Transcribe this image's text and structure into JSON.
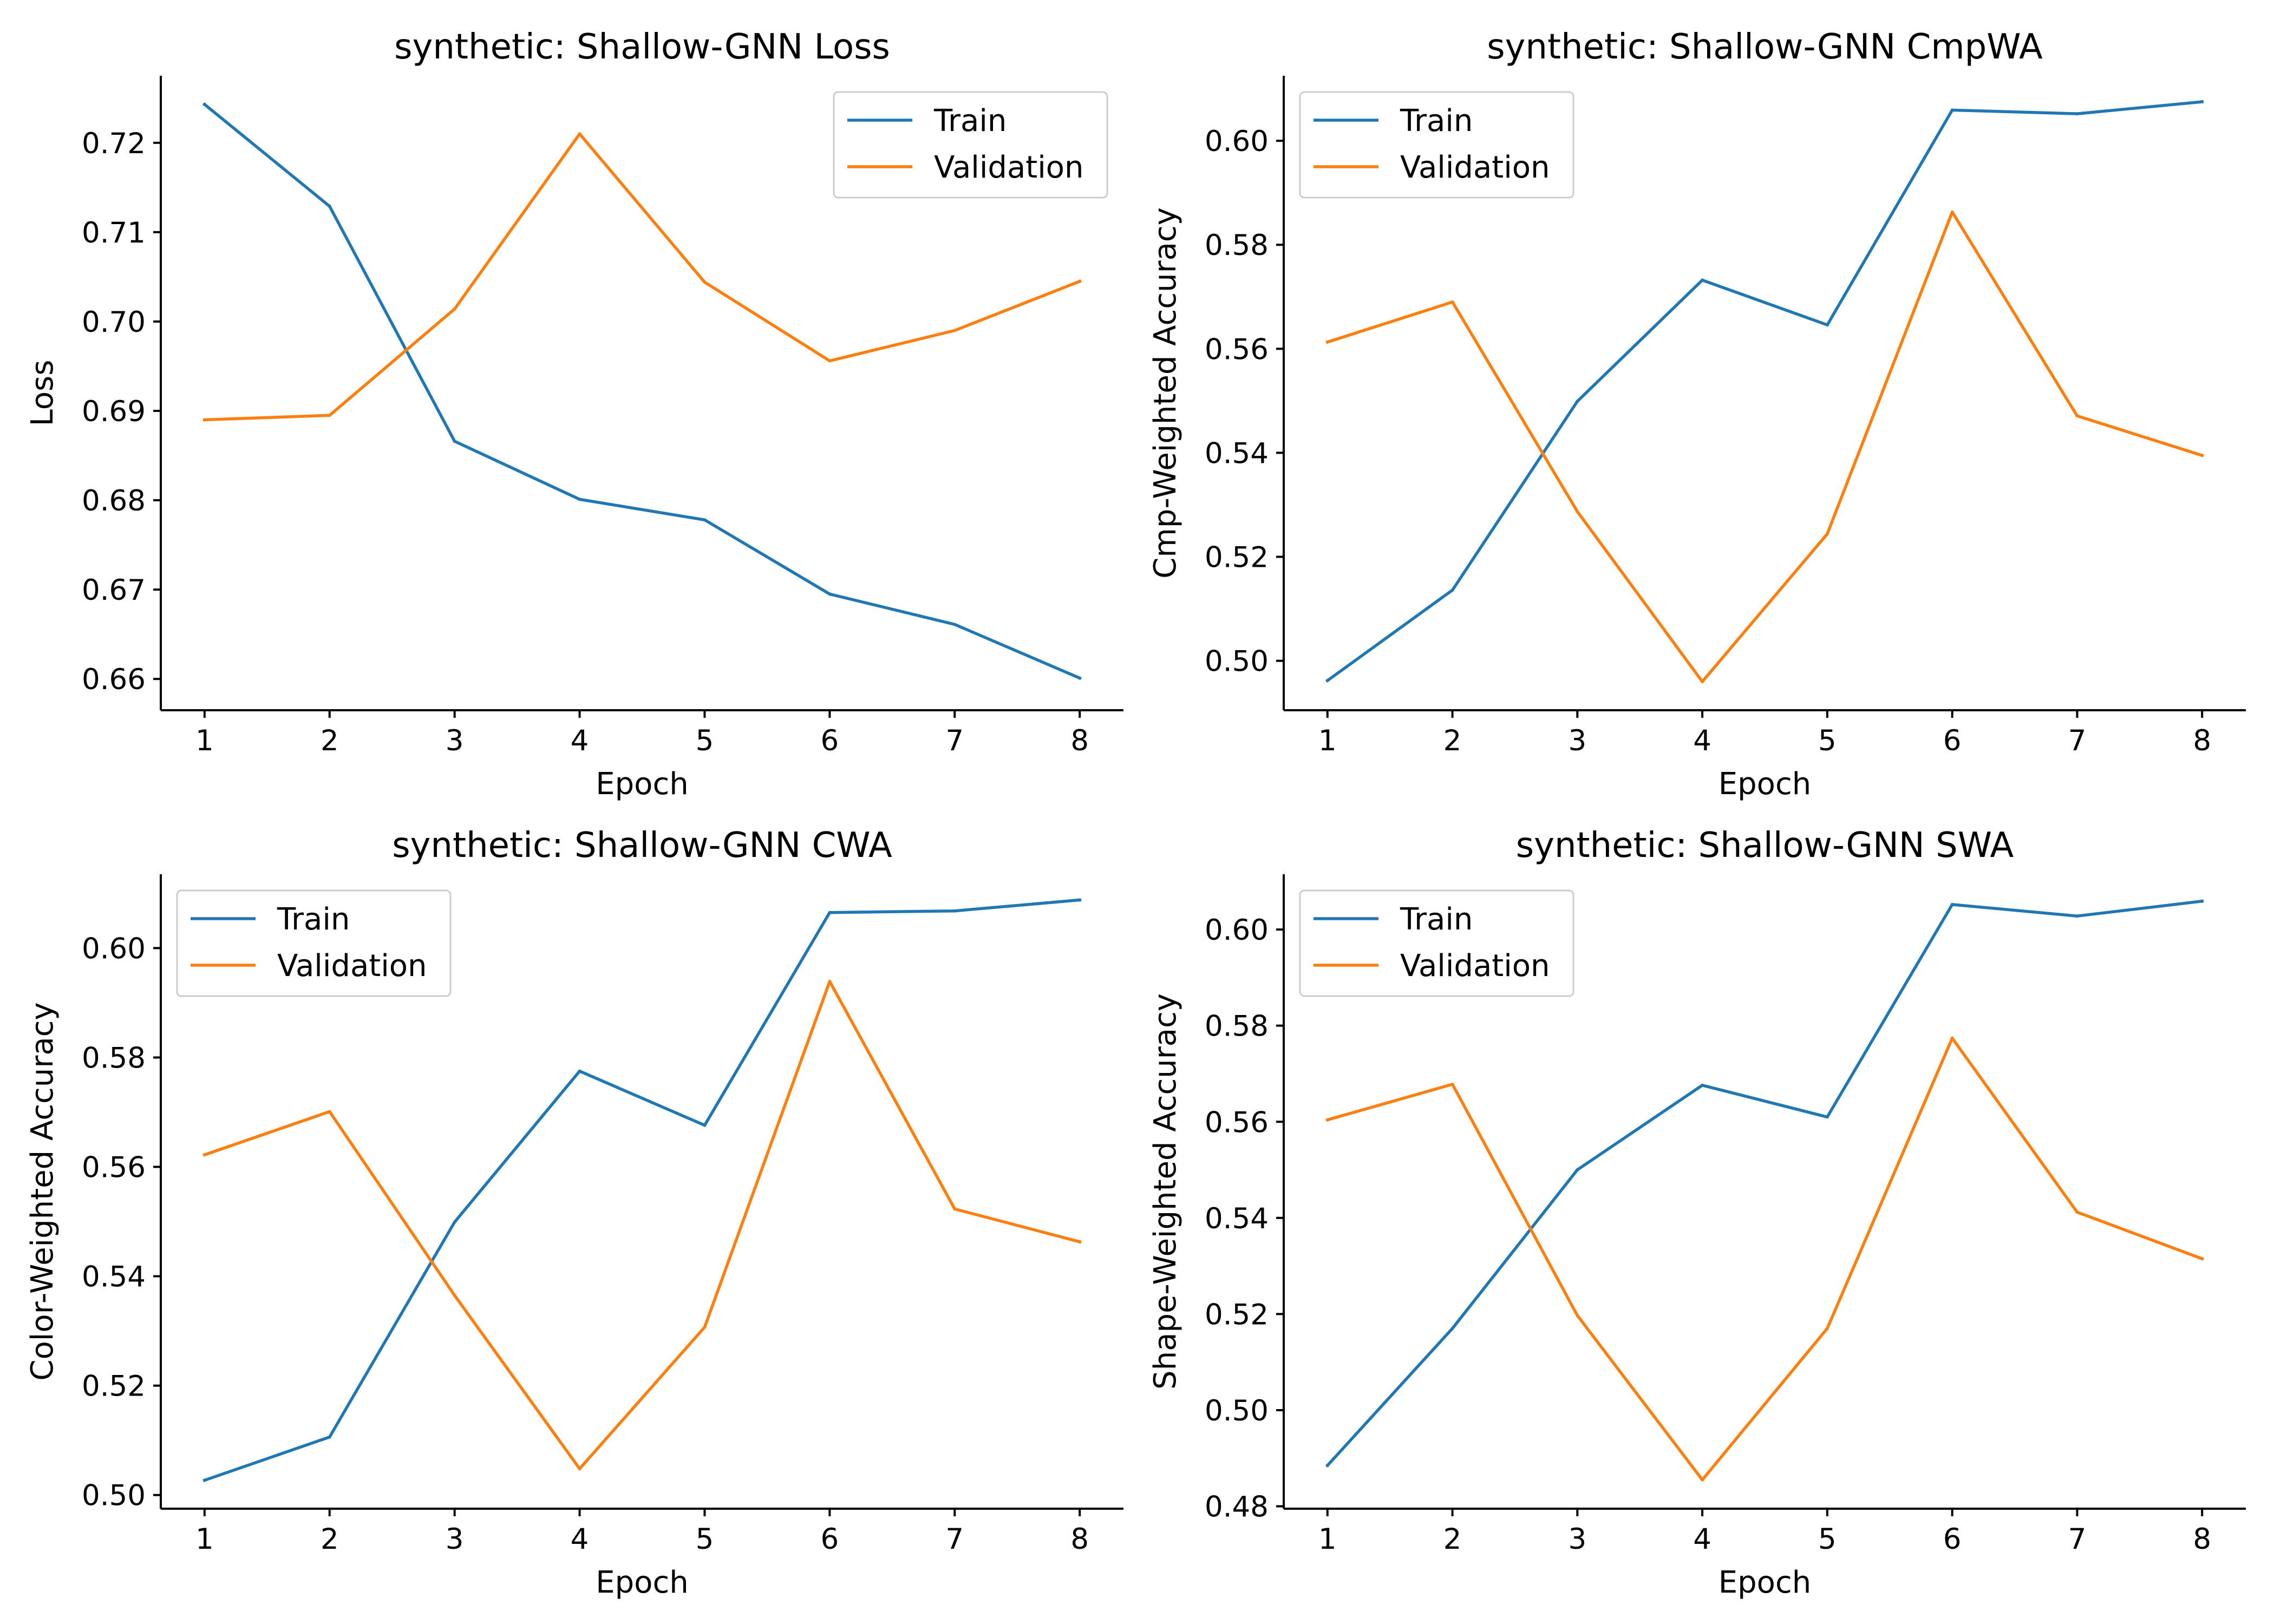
{
  "colors": {
    "train": "#1f77b4",
    "validation": "#ff7f0e"
  },
  "chart_data": [
    {
      "type": "line",
      "title": "synthetic: Shallow-GNN Loss",
      "xlabel": "Epoch",
      "ylabel": "Loss",
      "x": [
        1,
        2,
        3,
        4,
        5,
        6,
        7,
        8
      ],
      "xticks": [
        "1",
        "2",
        "3",
        "4",
        "5",
        "6",
        "7",
        "8"
      ],
      "ylim": [
        0.6565,
        0.7275
      ],
      "yticks": [
        "0.66",
        "0.67",
        "0.68",
        "0.69",
        "0.70",
        "0.71",
        "0.72"
      ],
      "legend": "top-right",
      "grid": false,
      "series": [
        {
          "name": "Train",
          "values": [
            0.7243,
            0.7129,
            0.6866,
            0.6801,
            0.6778,
            0.6695,
            0.6661,
            0.6601
          ]
        },
        {
          "name": "Validation",
          "values": [
            0.689,
            0.6895,
            0.7014,
            0.721,
            0.7044,
            0.6956,
            0.699,
            0.7045
          ]
        }
      ]
    },
    {
      "type": "line",
      "title": "synthetic: Shallow-GNN CmpWA",
      "xlabel": "Epoch",
      "ylabel": "Cmp-Weighted Accuracy",
      "x": [
        1,
        2,
        3,
        4,
        5,
        6,
        7,
        8
      ],
      "xticks": [
        "1",
        "2",
        "3",
        "4",
        "5",
        "6",
        "7",
        "8"
      ],
      "ylim": [
        0.4905,
        0.6125
      ],
      "yticks": [
        "0.50",
        "0.52",
        "0.54",
        "0.56",
        "0.58",
        "0.60"
      ],
      "legend": "top-left",
      "grid": false,
      "series": [
        {
          "name": "Train",
          "values": [
            0.4962,
            0.5136,
            0.5499,
            0.5732,
            0.5646,
            0.6059,
            0.6052,
            0.6075
          ]
        },
        {
          "name": "Validation",
          "values": [
            0.5613,
            0.569,
            0.5287,
            0.496,
            0.5244,
            0.5863,
            0.5471,
            0.5395
          ]
        }
      ]
    },
    {
      "type": "line",
      "title": "synthetic: Shallow-GNN CWA",
      "xlabel": "Epoch",
      "ylabel": "Color-Weighted Accuracy",
      "x": [
        1,
        2,
        3,
        4,
        5,
        6,
        7,
        8
      ],
      "xticks": [
        "1",
        "2",
        "3",
        "4",
        "5",
        "6",
        "7",
        "8"
      ],
      "ylim": [
        0.4975,
        0.6135
      ],
      "yticks": [
        "0.50",
        "0.52",
        "0.54",
        "0.56",
        "0.58",
        "0.60"
      ],
      "legend": "top-left",
      "grid": false,
      "series": [
        {
          "name": "Train",
          "values": [
            0.5027,
            0.5106,
            0.5499,
            0.5775,
            0.5676,
            0.6065,
            0.6068,
            0.6088
          ]
        },
        {
          "name": "Validation",
          "values": [
            0.5622,
            0.5701,
            0.5365,
            0.5048,
            0.5307,
            0.5939,
            0.5523,
            0.5463
          ]
        }
      ]
    },
    {
      "type": "line",
      "title": "synthetic: Shallow-GNN SWA",
      "xlabel": "Epoch",
      "ylabel": "Shape-Weighted Accuracy",
      "x": [
        1,
        2,
        3,
        4,
        5,
        6,
        7,
        8
      ],
      "xticks": [
        "1",
        "2",
        "3",
        "4",
        "5",
        "6",
        "7",
        "8"
      ],
      "ylim": [
        0.4795,
        0.6115
      ],
      "yticks": [
        "0.48",
        "0.50",
        "0.52",
        "0.54",
        "0.56",
        "0.58",
        "0.60"
      ],
      "legend": "top-left",
      "grid": false,
      "series": [
        {
          "name": "Train",
          "values": [
            0.4885,
            0.517,
            0.55,
            0.5676,
            0.561,
            0.6052,
            0.6028,
            0.6059
          ]
        },
        {
          "name": "Validation",
          "values": [
            0.5604,
            0.5678,
            0.5197,
            0.4855,
            0.517,
            0.5774,
            0.5412,
            0.5315
          ]
        }
      ]
    }
  ]
}
